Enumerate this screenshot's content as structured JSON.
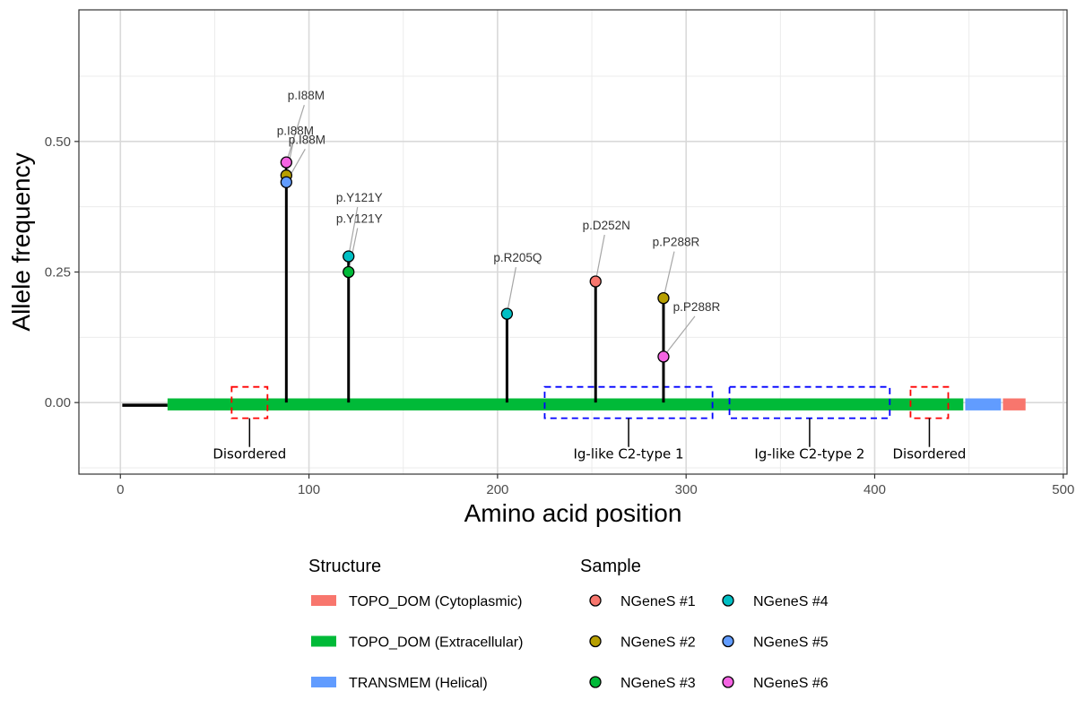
{
  "chart_data": {
    "type": "lollipop",
    "title": "",
    "xlabel": "Amino acid position",
    "ylabel": "Allele frequency",
    "xlim": [
      -22,
      502
    ],
    "ylim": [
      -0.137,
      0.752
    ],
    "x_ticks": [
      0,
      100,
      200,
      300,
      400,
      500
    ],
    "y_ticks": [
      0,
      0.25,
      0.5
    ],
    "y_tick_labels": [
      "0.00",
      "0.25",
      "0.50"
    ],
    "grid": true,
    "protein_start": 1,
    "protein_end": 480,
    "structure": [
      {
        "type": "TOPO_DOM (Extracellular)",
        "start": 25,
        "end": 447
      },
      {
        "type": "TRANSMEM (Helical)",
        "start": 448,
        "end": 467
      },
      {
        "type": "TOPO_DOM (Cytoplasmic)",
        "start": 468,
        "end": 480
      }
    ],
    "regions": [
      {
        "name": "Disordered",
        "start": 59,
        "end": 78,
        "kind": "disordered"
      },
      {
        "name": "Ig-like C2-type 1",
        "start": 225,
        "end": 314,
        "kind": "domain"
      },
      {
        "name": "Ig-like C2-type 2",
        "start": 323,
        "end": 408,
        "kind": "domain"
      },
      {
        "name": "Disordered",
        "start": 419,
        "end": 439,
        "kind": "disordered"
      }
    ],
    "mutations": [
      {
        "position": 88,
        "af": 0.46,
        "sample": "NGeneS #6",
        "label": "p.I88M"
      },
      {
        "position": 88,
        "af": 0.435,
        "sample": "NGeneS #2",
        "label": "p.I88M"
      },
      {
        "position": 88,
        "af": 0.422,
        "sample": "NGeneS #5",
        "label": "p.I88M"
      },
      {
        "position": 121,
        "af": 0.28,
        "sample": "NGeneS #4",
        "label": "p.Y121Y"
      },
      {
        "position": 121,
        "af": 0.25,
        "sample": "NGeneS #3",
        "label": "p.Y121Y"
      },
      {
        "position": 205,
        "af": 0.17,
        "sample": "NGeneS #4",
        "label": "p.R205Q"
      },
      {
        "position": 252,
        "af": 0.232,
        "sample": "NGeneS #1",
        "label": "p.D252N"
      },
      {
        "position": 288,
        "af": 0.2,
        "sample": "NGeneS #2",
        "label": "p.P288R"
      },
      {
        "position": 288,
        "af": 0.088,
        "sample": "NGeneS #6",
        "label": "p.P288R"
      }
    ],
    "legend": {
      "placement": "bottom",
      "structure_title": "Structure",
      "structure_items": [
        {
          "label": "TOPO_DOM (Cytoplasmic)",
          "color": "#F8766D"
        },
        {
          "label": "TOPO_DOM (Extracellular)",
          "color": "#00BA38"
        },
        {
          "label": "TRANSMEM (Helical)",
          "color": "#619CFF"
        }
      ],
      "sample_title": "Sample",
      "sample_items": [
        {
          "label": "NGeneS #1",
          "color": "#F8766D"
        },
        {
          "label": "NGeneS #2",
          "color": "#B79F00"
        },
        {
          "label": "NGeneS #3",
          "color": "#00BA38"
        },
        {
          "label": "NGeneS #4",
          "color": "#00BFC4"
        },
        {
          "label": "NGeneS #5",
          "color": "#619CFF"
        },
        {
          "label": "NGeneS #6",
          "color": "#F564E3"
        }
      ]
    },
    "colors": {
      "extracellular": "#00BA38",
      "transmembrane": "#619CFF",
      "cytoplasmic": "#F8766D",
      "disordered_box": "#FF0000",
      "domain_box": "#0000FF"
    }
  }
}
